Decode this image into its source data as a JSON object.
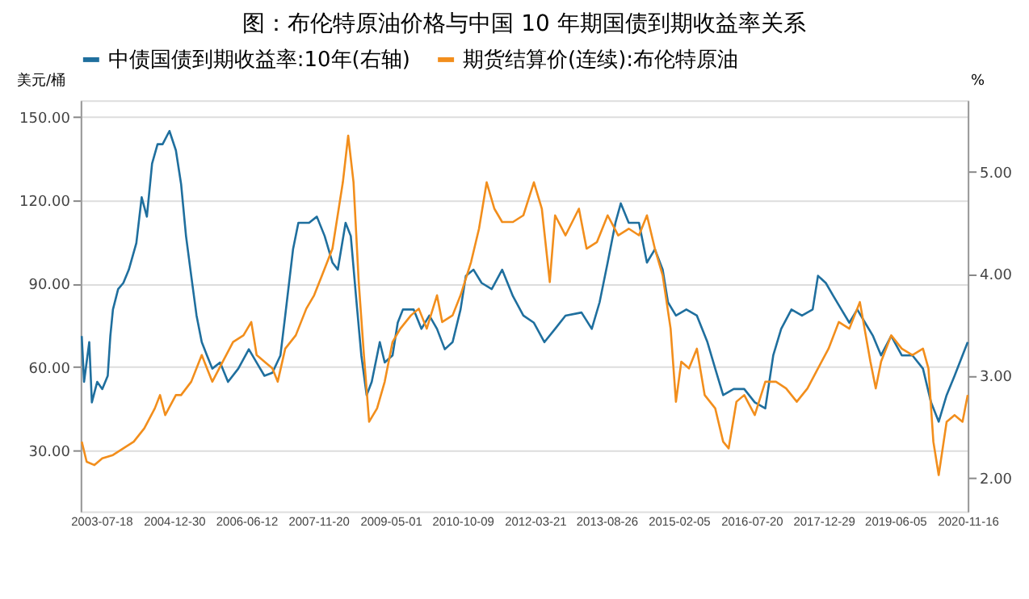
{
  "chart_data": {
    "type": "line",
    "title": "图：布伦特原油价格与中国 10 年期国债到期收益率关系",
    "ylabel": "美元/桶",
    "y2label": "%",
    "xlim": [
      "2003-02-17",
      "2020-11-16"
    ],
    "xticks": [
      "2003-07-18",
      "2004-12-30",
      "2006-06-12",
      "2007-11-20",
      "2009-05-01",
      "2010-10-09",
      "2012-03-21",
      "2013-08-26",
      "2015-02-05",
      "2016-07-20",
      "2017-12-29",
      "2019-06-05",
      "2020-11-16"
    ],
    "ylim": [
      8,
      156
    ],
    "yticks": [
      {
        "value": 30,
        "label": "30.00"
      },
      {
        "value": 60,
        "label": "60.00"
      },
      {
        "value": 90,
        "label": "90.00"
      },
      {
        "value": 120,
        "label": "120.00"
      },
      {
        "value": 150,
        "label": "150.00"
      }
    ],
    "y2lim": [
      1.67,
      5.7
    ],
    "y2ticks": [
      {
        "value": 2,
        "label": "2.00"
      },
      {
        "value": 3,
        "label": "3.00"
      },
      {
        "value": 4,
        "label": "4.00"
      },
      {
        "value": 5,
        "label": "5.00"
      }
    ],
    "grid": "y",
    "legend": "top",
    "line_style": "solid",
    "marker": "none",
    "series": [
      {
        "name": "中债国债到期收益率:10年(右轴)",
        "color": "#1f6f9e",
        "axis": "y2",
        "x": [
          "2003-02-25",
          "2003-03-14",
          "2003-04-21",
          "2003-05-10",
          "2003-06-18",
          "2003-07-25",
          "2003-09-03",
          "2003-09-22",
          "2003-10-11",
          "2003-11-18",
          "2003-12-26",
          "2004-02-04",
          "2004-03-30",
          "2004-05-08",
          "2004-06-15",
          "2004-07-23",
          "2004-09-01",
          "2004-10-08",
          "2004-11-27",
          "2005-01-13",
          "2005-02-20",
          "2005-03-28",
          "2005-05-05",
          "2005-06-13",
          "2005-07-21",
          "2005-08-28",
          "2005-10-06",
          "2005-12-02",
          "2006-01-29",
          "2006-04-14",
          "2006-06-30",
          "2006-08-26",
          "2006-10-22",
          "2006-12-19",
          "2007-02-16",
          "2007-03-23",
          "2007-05-19",
          "2007-06-27",
          "2007-09-13",
          "2007-11-09",
          "2008-01-05",
          "2008-03-02",
          "2008-04-10",
          "2008-06-06",
          "2008-07-14",
          "2008-08-21",
          "2008-09-29",
          "2008-11-07",
          "2008-12-14",
          "2009-02-11",
          "2009-03-19",
          "2009-05-15",
          "2009-06-22",
          "2009-07-30",
          "2009-10-16",
          "2009-12-12",
          "2010-02-08",
          "2010-04-05",
          "2010-06-01",
          "2010-07-28",
          "2010-09-24",
          "2010-11-02",
          "2010-12-28",
          "2011-02-25",
          "2011-05-10",
          "2011-07-25",
          "2011-10-12",
          "2011-12-27",
          "2012-03-13",
          "2012-05-29",
          "2012-08-15",
          "2012-10-30",
          "2013-02-24",
          "2013-05-10",
          "2013-07-06",
          "2013-09-03",
          "2013-10-30",
          "2013-12-08",
          "2014-02-04",
          "2014-04-20",
          "2014-06-17",
          "2014-08-14",
          "2014-10-10",
          "2014-11-18",
          "2015-01-15",
          "2015-04-01",
          "2015-06-17",
          "2015-09-02",
          "2015-10-29",
          "2015-12-26",
          "2016-03-12",
          "2016-05-28",
          "2016-08-13",
          "2016-10-29",
          "2016-12-26",
          "2017-02-22",
          "2017-05-08",
          "2017-07-24",
          "2017-10-10",
          "2017-11-18",
          "2018-01-14",
          "2018-03-11",
          "2018-05-08",
          "2018-07-05",
          "2018-09-01",
          "2018-10-28",
          "2018-12-25",
          "2019-02-22",
          "2019-05-07",
          "2019-07-23",
          "2019-10-09",
          "2019-12-25",
          "2020-02-22",
          "2020-04-18",
          "2020-06-15",
          "2020-08-12",
          "2020-10-09",
          "2020-11-16"
        ],
        "values": [
          3.39,
          2.94,
          3.33,
          2.74,
          2.94,
          2.87,
          3.0,
          3.39,
          3.65,
          3.85,
          3.91,
          4.04,
          4.3,
          4.75,
          4.56,
          5.08,
          5.27,
          5.27,
          5.4,
          5.21,
          4.88,
          4.37,
          3.98,
          3.59,
          3.33,
          3.2,
          3.07,
          3.13,
          2.94,
          3.07,
          3.26,
          3.13,
          3.0,
          3.03,
          3.2,
          3.59,
          4.24,
          4.5,
          4.5,
          4.56,
          4.37,
          4.11,
          4.04,
          4.5,
          4.37,
          3.78,
          3.2,
          2.81,
          2.94,
          3.33,
          3.13,
          3.2,
          3.52,
          3.65,
          3.65,
          3.46,
          3.59,
          3.46,
          3.26,
          3.33,
          3.65,
          3.98,
          4.04,
          3.91,
          3.85,
          4.04,
          3.78,
          3.59,
          3.52,
          3.33,
          3.46,
          3.59,
          3.62,
          3.46,
          3.72,
          4.11,
          4.5,
          4.69,
          4.5,
          4.5,
          4.11,
          4.24,
          4.04,
          3.72,
          3.59,
          3.65,
          3.59,
          3.33,
          3.07,
          2.81,
          2.87,
          2.87,
          2.74,
          2.68,
          3.2,
          3.46,
          3.65,
          3.59,
          3.65,
          3.98,
          3.91,
          3.78,
          3.65,
          3.52,
          3.65,
          3.52,
          3.39,
          3.2,
          3.39,
          3.2,
          3.2,
          3.07,
          2.74,
          2.55,
          2.81,
          3.0,
          3.2,
          3.33
        ]
      },
      {
        "name": "期货结算价(连续):布伦特原油",
        "color": "#f28e1c",
        "x": [
          "2003-02-25",
          "2003-04-02",
          "2003-05-29",
          "2003-07-25",
          "2003-10-11",
          "2003-12-26",
          "2004-03-11",
          "2004-05-27",
          "2004-08-12",
          "2004-09-19",
          "2004-10-27",
          "2005-01-13",
          "2005-02-20",
          "2005-05-05",
          "2005-07-21",
          "2005-08-28",
          "2005-10-06",
          "2005-12-21",
          "2006-03-07",
          "2006-05-22",
          "2006-07-18",
          "2006-08-26",
          "2006-10-22",
          "2006-12-19",
          "2007-01-27",
          "2007-03-23",
          "2007-06-08",
          "2007-08-24",
          "2007-10-20",
          "2007-12-17",
          "2008-03-02",
          "2008-05-17",
          "2008-06-25",
          "2008-08-03",
          "2008-09-10",
          "2008-10-18",
          "2008-11-25",
          "2009-01-22",
          "2009-03-19",
          "2009-05-15",
          "2009-07-11",
          "2009-09-27",
          "2009-11-23",
          "2010-01-20",
          "2010-04-05",
          "2010-05-13",
          "2010-07-28",
          "2010-09-24",
          "2010-12-10",
          "2011-02-06",
          "2011-04-03",
          "2011-05-29",
          "2011-07-25",
          "2011-10-12",
          "2011-12-27",
          "2012-03-13",
          "2012-05-10",
          "2012-07-07",
          "2012-08-15",
          "2012-10-30",
          "2013-02-05",
          "2013-04-02",
          "2013-06-17",
          "2013-09-03",
          "2013-11-19",
          "2014-02-04",
          "2014-04-20",
          "2014-06-17",
          "2014-08-14",
          "2014-10-10",
          "2014-12-07",
          "2015-01-15",
          "2015-02-23",
          "2015-04-20",
          "2015-06-17",
          "2015-08-13",
          "2015-10-29",
          "2015-12-26",
          "2016-02-04",
          "2016-04-01",
          "2016-05-28",
          "2016-08-13",
          "2016-10-29",
          "2017-01-15",
          "2017-03-30",
          "2017-06-16",
          "2017-09-02",
          "2017-11-18",
          "2018-02-03",
          "2018-04-19",
          "2018-07-05",
          "2018-09-20",
          "2018-12-06",
          "2019-01-14",
          "2019-02-22",
          "2019-05-07",
          "2019-07-23",
          "2019-10-09",
          "2019-12-25",
          "2020-02-03",
          "2020-03-10",
          "2020-04-18",
          "2020-06-15",
          "2020-08-12",
          "2020-10-09",
          "2020-11-16"
        ],
        "values": [
          33.1,
          25.9,
          24.7,
          27.1,
          28.3,
          30.7,
          33.1,
          37.9,
          45.1,
          49.9,
          42.7,
          49.9,
          49.9,
          54.7,
          64.3,
          59.5,
          54.7,
          61.9,
          69.0,
          71.4,
          76.2,
          64.3,
          61.9,
          59.5,
          54.7,
          66.6,
          71.4,
          81.0,
          85.8,
          93.0,
          102.6,
          126.5,
          143.3,
          126.5,
          90.6,
          64.3,
          40.3,
          45.1,
          54.7,
          69.0,
          73.8,
          78.6,
          81.0,
          73.8,
          85.8,
          76.2,
          78.6,
          85.8,
          97.8,
          109.8,
          126.5,
          117.0,
          112.2,
          112.2,
          114.6,
          126.5,
          117.0,
          90.6,
          114.6,
          107.4,
          117.0,
          102.6,
          105.0,
          114.6,
          107.4,
          109.8,
          107.4,
          114.6,
          102.6,
          93.0,
          73.8,
          47.5,
          61.9,
          59.5,
          66.6,
          49.9,
          45.1,
          33.1,
          30.7,
          47.5,
          49.9,
          42.7,
          54.7,
          54.7,
          52.3,
          47.5,
          52.3,
          59.5,
          66.6,
          76.2,
          73.8,
          83.4,
          61.9,
          52.3,
          61.9,
          71.4,
          66.6,
          64.3,
          66.6,
          59.5,
          33.1,
          21.1,
          40.3,
          42.7,
          40.3,
          49.9
        ]
      }
    ]
  }
}
